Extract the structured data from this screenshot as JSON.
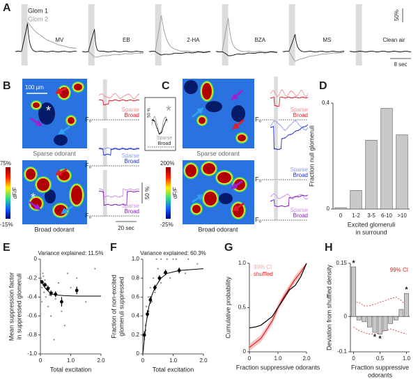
{
  "panel_labels": [
    "A",
    "B",
    "C",
    "D",
    "E",
    "F",
    "G",
    "H"
  ],
  "panel_a": {
    "legend": [
      "Glom 1",
      "Glom 2"
    ],
    "odorants": [
      "MV",
      "EB",
      "2-HA",
      "BZA",
      "MS",
      "Clean air"
    ],
    "scale_y": "50%",
    "scale_x": "8 sec"
  },
  "panel_b": {
    "scale_bar": "100 µm",
    "asterisk": "*",
    "sparse_image_label": "Sparse odorant",
    "broad_image_label": "Broad odorant",
    "colorbar": {
      "max": "75%",
      "min": "-15%",
      "label": "dF/F"
    },
    "traces": [
      {
        "sparse": "Sparse",
        "broad": "Broad",
        "baseline": "F₀"
      },
      {
        "sparse": "Sparse",
        "broad": "Broad",
        "baseline": "F₀"
      },
      {
        "sparse": "Sparse",
        "broad": "Broad",
        "baseline": "F₀"
      }
    ],
    "scale_y": "50 %",
    "scale_x": "20 sec",
    "inset": {
      "scale_y": "50 %",
      "asterisk": "*",
      "sparse": "Sparse",
      "broad": "Broad"
    }
  },
  "panel_c": {
    "sparse_image_label": "Sparse odorant",
    "broad_image_label": "Broad odorant",
    "colorbar": {
      "max": "200%",
      "min": "-25%",
      "label": "dF/F"
    },
    "traces": [
      {
        "sparse": "Sparse",
        "broad": "Broad",
        "baseline": "F₀"
      },
      {
        "sparse": "Sparse",
        "broad": "Broad",
        "baseline": "F₀"
      },
      {
        "sparse": "Sparse",
        "broad": "Broad",
        "baseline": "F₀"
      }
    ]
  },
  "chart_data": [
    {
      "type": "bar",
      "y_label": [
        "Fraction null glomeruli"
      ],
      "x_label": [
        "Excited glomeruli",
        "in surround"
      ],
      "categories": [
        "0",
        "1-2",
        "3-5",
        "6-10",
        ">10"
      ],
      "values": [
        0.005,
        0.07,
        0.26,
        0.38,
        0.28
      ],
      "color": "#c8c8c8",
      "ylim": [
        0,
        0.4
      ],
      "yticks": [
        0,
        0.4
      ]
    },
    {
      "type": "scatter",
      "title": "Variance explained: 11.5%",
      "y_label": [
        "Mean suppression factor",
        "in suppressed glomeruli"
      ],
      "x_label": [
        "Total excitation"
      ],
      "xlim": [
        0,
        2
      ],
      "xticks": [
        0,
        {
          "value": 1,
          "label": "1.0"
        },
        {
          "value": 2,
          "label": "2.0"
        }
      ],
      "ylim": [
        -1,
        0
      ],
      "yticks": [
        0,
        -0.2,
        -0.4,
        -0.6,
        -0.8,
        {
          "value": -1,
          "label": "-1.0"
        }
      ],
      "points": {
        "color": "#888888",
        "x": [
          0.02,
          0.05,
          0.08,
          0.1,
          0.12,
          0.15,
          0.18,
          0.2,
          0.25,
          0.3,
          0.35,
          0.4,
          0.5,
          0.6,
          0.7,
          0.8,
          1.0,
          1.2,
          1.5,
          1.8,
          0.05,
          0.1,
          0.3,
          0.45,
          0.9
        ],
        "y": [
          -0.2,
          -0.3,
          -0.15,
          -0.25,
          -0.35,
          -0.22,
          -0.4,
          -0.28,
          -0.5,
          -0.3,
          -0.6,
          -0.35,
          -0.42,
          -0.25,
          -0.55,
          -0.7,
          -0.3,
          -0.2,
          -0.45,
          -0.1,
          -0.45,
          -0.18,
          -0.38,
          -0.85,
          -0.15
        ]
      },
      "means": {
        "color": "#000000",
        "x": [
          0.05,
          0.15,
          0.25,
          0.35,
          0.5,
          0.7,
          1.2
        ],
        "y": [
          -0.24,
          -0.27,
          -0.31,
          -0.36,
          -0.37,
          -0.45,
          -0.33
        ],
        "errors": [
          0.02,
          0.02,
          0.03,
          0.03,
          0.03,
          0.05,
          0.04
        ]
      },
      "fit": {
        "color": "#000000",
        "x": [
          0,
          0.1,
          0.2,
          0.3,
          0.4,
          0.6,
          0.8,
          1.2,
          1.6,
          2.0
        ],
        "y": [
          -0.22,
          -0.28,
          -0.32,
          -0.35,
          -0.37,
          -0.38,
          -0.385,
          -0.39,
          -0.39,
          -0.39
        ]
      }
    },
    {
      "type": "scatter",
      "title": "Variance explained: 60.3%",
      "y_label": [
        "Fraction of non-excited",
        "glomeruli suppressed"
      ],
      "x_label": [
        "Total excitation"
      ],
      "xlim": [
        0,
        2
      ],
      "xticks": [
        0,
        {
          "value": 1,
          "label": "1.0"
        },
        {
          "value": 2,
          "label": "2.0"
        }
      ],
      "ylim": [
        0,
        1
      ],
      "yticks": [
        0,
        0.2,
        0.4,
        0.6,
        0.8,
        {
          "value": 1,
          "label": "1.0"
        }
      ],
      "points": {
        "color": "#888888",
        "x": [
          0.02,
          0.05,
          0.08,
          0.1,
          0.12,
          0.15,
          0.18,
          0.2,
          0.25,
          0.3,
          0.35,
          0.4,
          0.5,
          0.6,
          0.7,
          0.8,
          1.0,
          1.2,
          1.5,
          1.8,
          0.6,
          0.9,
          1.1,
          1.4,
          0.45
        ],
        "y": [
          0.05,
          0.15,
          0.3,
          0.25,
          0.5,
          0.4,
          0.6,
          0.45,
          0.7,
          0.55,
          0.8,
          0.65,
          0.9,
          1.0,
          0.85,
          1.0,
          1.0,
          0.9,
          1.0,
          0.95,
          0.75,
          0.8,
          1.0,
          0.85,
          1.0
        ]
      },
      "means": {
        "color": "#000000",
        "x": [
          0.05,
          0.15,
          0.25,
          0.4,
          0.55,
          0.75,
          1.2
        ],
        "y": [
          0.2,
          0.42,
          0.57,
          0.7,
          0.8,
          0.86,
          0.88
        ],
        "errors": [
          0.04,
          0.04,
          0.04,
          0.03,
          0.03,
          0.03,
          0.03
        ]
      },
      "fit": {
        "color": "#000000",
        "x": [
          0,
          0.1,
          0.2,
          0.3,
          0.4,
          0.6,
          0.8,
          1.2,
          1.6,
          2.0
        ],
        "y": [
          0,
          0.3,
          0.5,
          0.62,
          0.7,
          0.8,
          0.85,
          0.88,
          0.89,
          0.9
        ]
      }
    },
    {
      "type": "line",
      "y_label": [
        "Cumulative probability"
      ],
      "x_label": [
        "Fraction suppressive odorants"
      ],
      "xlim": [
        0,
        2
      ],
      "xticks": [
        0,
        {
          "value": 1,
          "label": "1.0"
        },
        {
          "value": 2,
          "label": "2.0"
        }
      ],
      "ylim": [
        0,
        1
      ],
      "yticks": [
        0,
        0.5,
        {
          "value": 1,
          "label": "1.0"
        }
      ],
      "x": [
        0,
        0.2,
        0.4,
        0.6,
        0.8,
        1.0,
        1.2,
        1.4,
        1.6,
        1.8,
        2.0
      ],
      "series": [
        {
          "name": "99% CI",
          "color": "#f4a8a8",
          "upper": [
            0.09,
            0.14,
            0.19,
            0.29,
            0.39,
            0.54,
            0.66,
            0.76,
            0.86,
            0.94,
            1.0
          ],
          "lower": [
            0.01,
            0.06,
            0.11,
            0.21,
            0.31,
            0.46,
            0.58,
            0.68,
            0.78,
            0.86,
            1.0
          ]
        },
        {
          "name": "shuffled",
          "color": "#e02020",
          "values": [
            0.05,
            0.1,
            0.15,
            0.25,
            0.35,
            0.5,
            0.62,
            0.72,
            0.82,
            0.9,
            1.0
          ]
        },
        {
          "color": "#000000",
          "values": [
            0.27,
            0.28,
            0.3,
            0.35,
            0.4,
            0.5,
            0.6,
            0.7,
            0.75,
            0.85,
            1.0
          ]
        }
      ]
    },
    {
      "type": "bar",
      "y_label": [
        "Deviation from shuffled density"
      ],
      "x_label": [
        "Fraction suppressive",
        "odorants"
      ],
      "xlim": [
        -0.06,
        1.06
      ],
      "xticks": [
        0,
        0.5,
        {
          "value": 1,
          "label": "1.0"
        }
      ],
      "ylim": [
        -0.1,
        0.15
      ],
      "yticks": [
        0.15,
        0,
        -0.1
      ],
      "color": "#c8c8c8",
      "x": [
        0,
        0.1,
        0.2,
        0.3,
        0.4,
        0.5,
        0.6,
        0.7,
        0.8,
        0.9,
        1.0
      ],
      "values": [
        0.14,
        -0.01,
        -0.015,
        -0.03,
        -0.045,
        -0.05,
        -0.04,
        -0.02,
        -0.01,
        0.02,
        0.065
      ],
      "significance": [
        "*",
        null,
        null,
        null,
        "*",
        "*",
        null,
        null,
        null,
        null,
        "*"
      ],
      "series": [
        {
          "name": "99% CI",
          "color": "#e02020",
          "upper": [
            0.04,
            0.04,
            0.03,
            0.03,
            0.035,
            0.04,
            0.045,
            0.05,
            0.055,
            0.045,
            0.03
          ],
          "lower": [
            -0.03,
            -0.04,
            -0.045,
            -0.05,
            -0.05,
            -0.045,
            -0.04,
            -0.035,
            -0.04,
            -0.045,
            -0.05
          ]
        }
      ]
    }
  ]
}
